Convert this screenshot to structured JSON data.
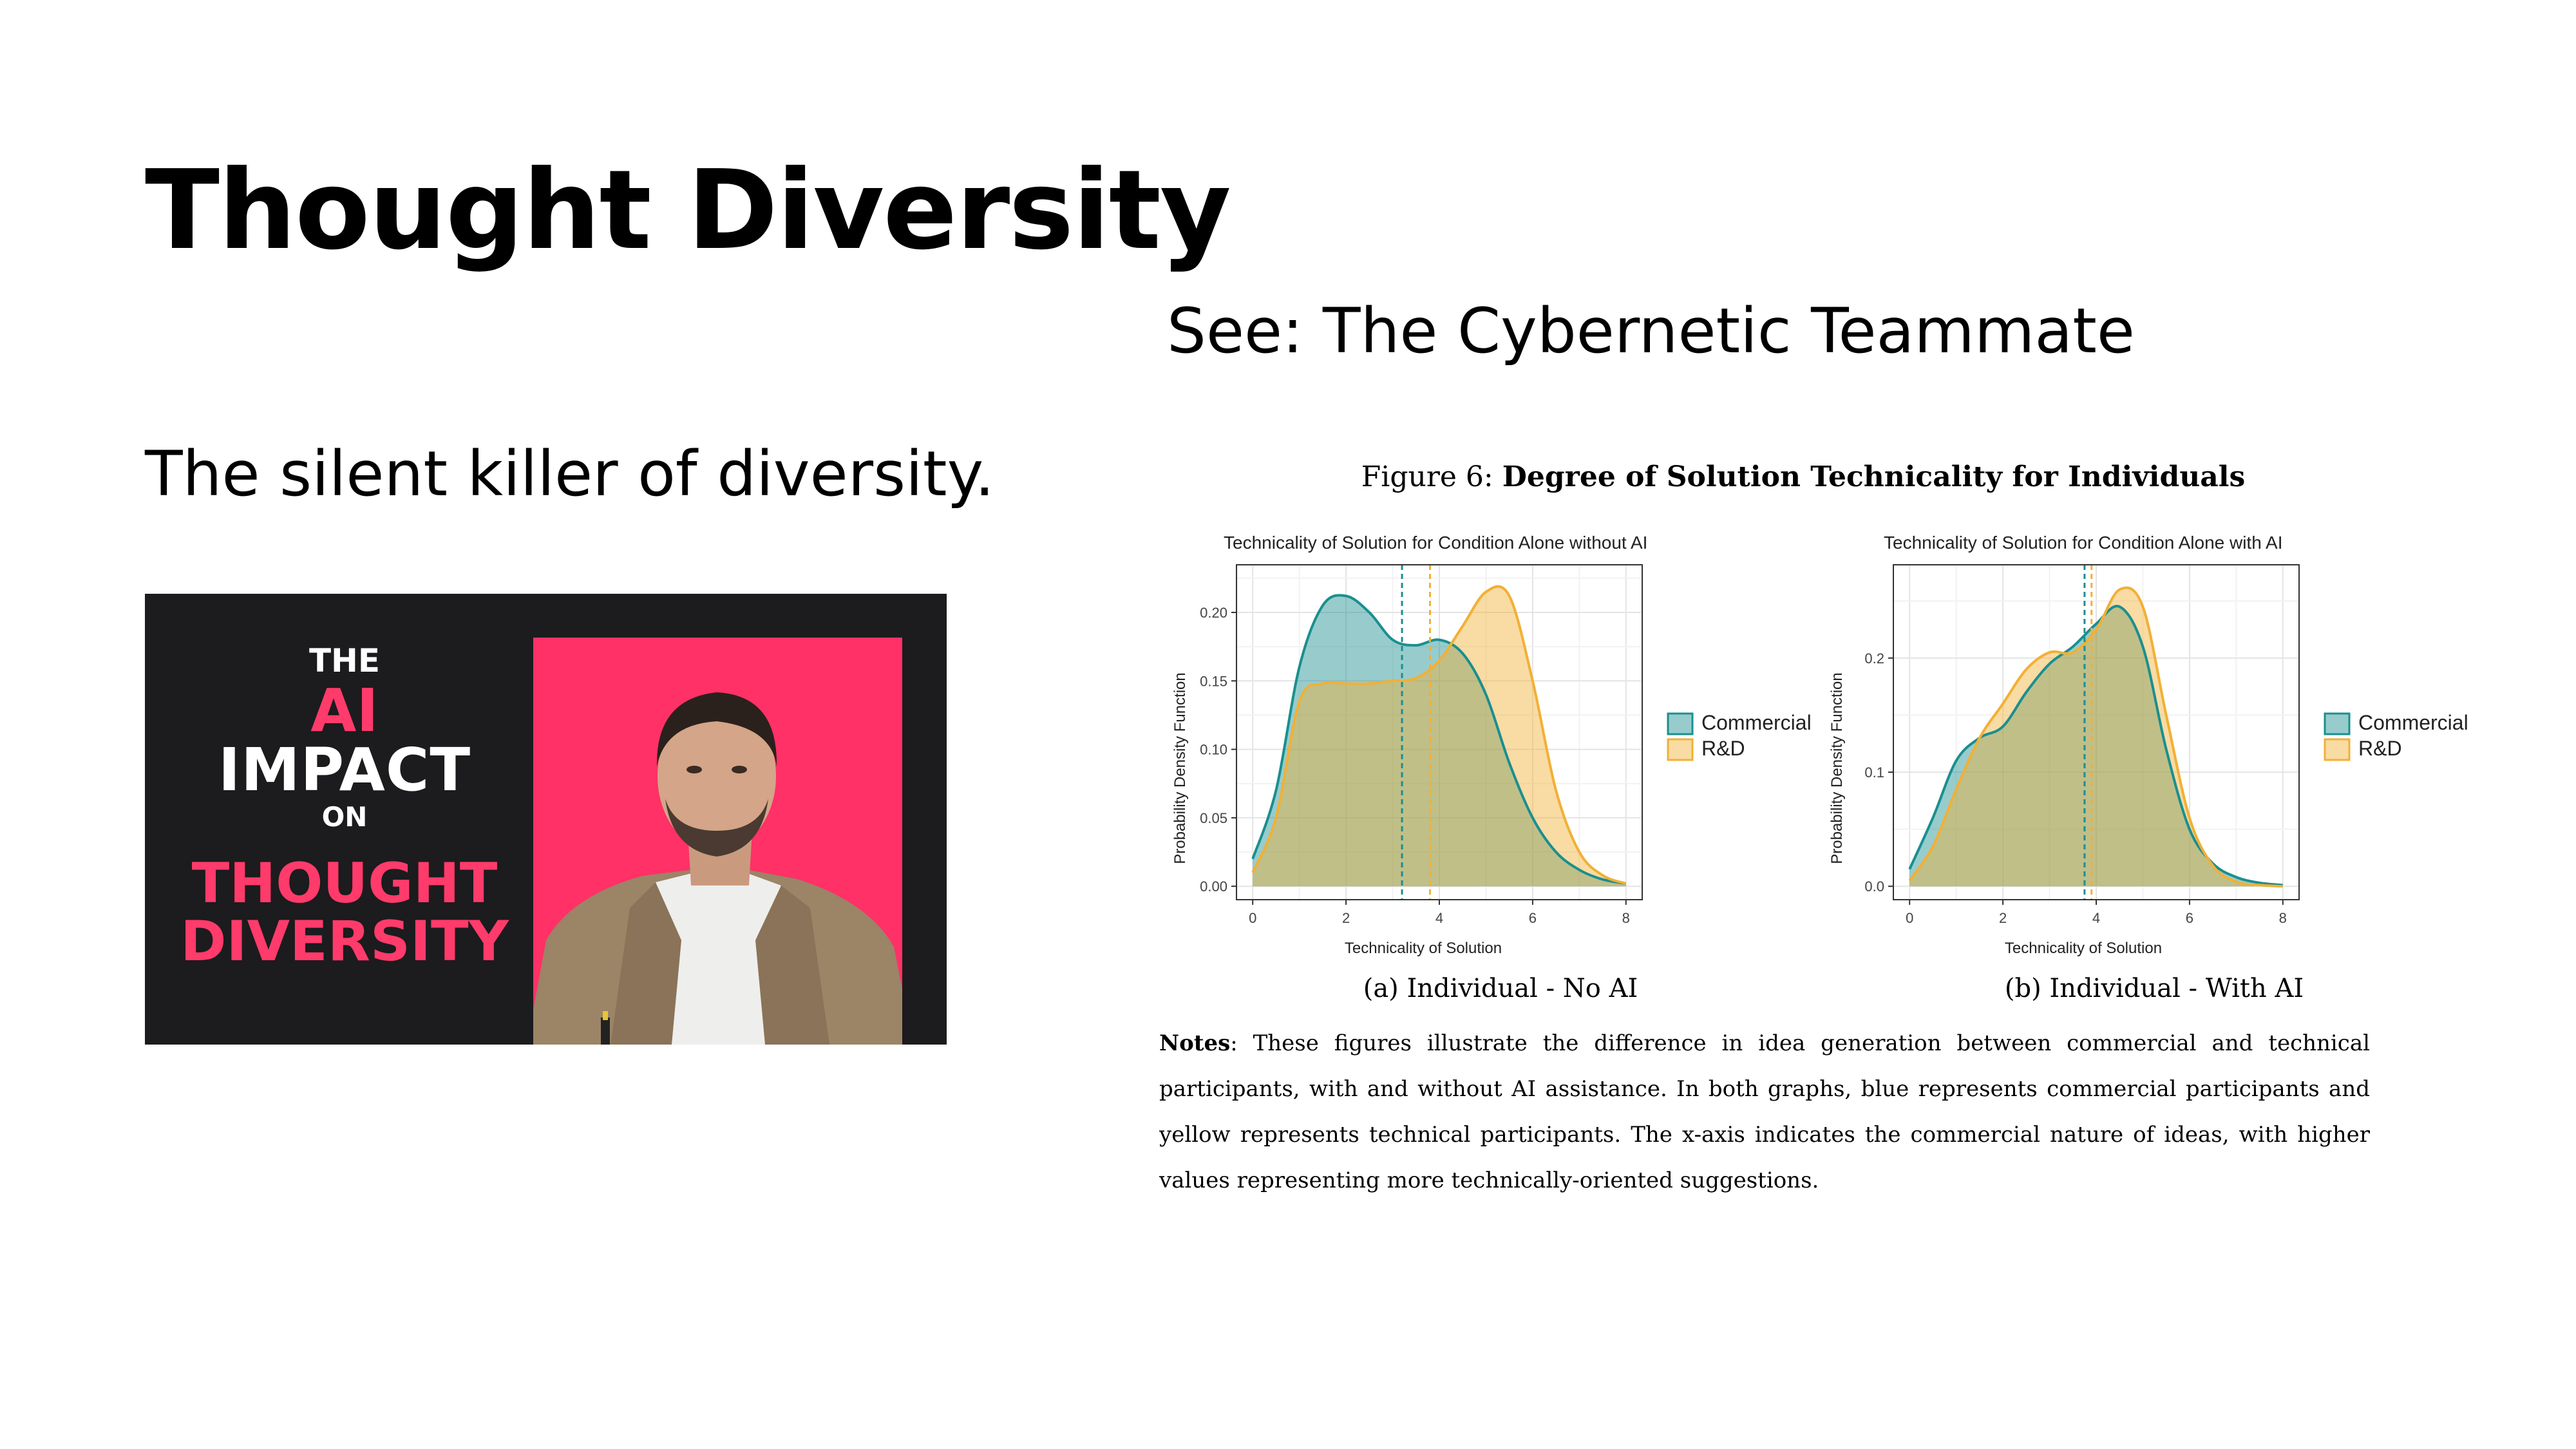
{
  "slide": {
    "title": "Thought Diversity",
    "see_text": "See: The Cybernetic Teammate",
    "subtitle": "The silent killer of diversity."
  },
  "thumbnail": {
    "line_the": "THE",
    "line_ai": "AI",
    "line_impact": "IMPACT",
    "line_on": "ON",
    "line_thought": "THOUGHT",
    "line_diversity": "DIVERSITY",
    "accent_color": "#ff3b6b",
    "background_color": "#1c1b1d"
  },
  "figure": {
    "caption_prefix": "Figure 6:",
    "caption_title": "Degree of Solution Technicality for Individuals",
    "notes_label": "Notes",
    "notes_text": ": These figures illustrate the difference in idea generation between commercial and technical participants, with and without AI assistance. In both graphs, blue represents commercial participants and yellow represents technical participants. The x-axis indicates the commercial nature of ideas, with higher values representing more technically-oriented suggestions."
  },
  "chart_data": [
    {
      "type": "area",
      "title": "Technicality of Solution for Condition Alone without AI",
      "subcaption": "(a) Individual - No AI",
      "xlabel": "Technicality of Solution",
      "ylabel": "Probability Density Function",
      "xlim": [
        0,
        8
      ],
      "ylim": [
        0,
        0.225
      ],
      "xticks": [
        0,
        2,
        4,
        6,
        8
      ],
      "yticks": [
        0.0,
        0.05,
        0.1,
        0.15,
        0.2
      ],
      "ytick_labels": [
        "0.00",
        "0.05",
        "0.10",
        "0.15",
        "0.20"
      ],
      "legend": [
        "Commercial",
        "R&D"
      ],
      "legend_position": "right",
      "grid": true,
      "series": [
        {
          "name": "Commercial",
          "color": "#1a8f8f",
          "mean": 3.2,
          "x": [
            0,
            0.5,
            1,
            1.5,
            2,
            2.5,
            3,
            3.5,
            4,
            4.5,
            5,
            5.5,
            6,
            6.5,
            7,
            7.5,
            8
          ],
          "y": [
            0.02,
            0.07,
            0.16,
            0.205,
            0.212,
            0.2,
            0.18,
            0.176,
            0.18,
            0.17,
            0.14,
            0.09,
            0.05,
            0.025,
            0.012,
            0.005,
            0.002
          ]
        },
        {
          "name": "R&D",
          "color": "#f2b035",
          "mean": 3.8,
          "x": [
            0,
            0.5,
            1,
            1.5,
            2,
            2.5,
            3,
            3.5,
            4,
            4.5,
            5,
            5.5,
            6,
            6.5,
            7,
            7.5,
            8
          ],
          "y": [
            0.01,
            0.05,
            0.135,
            0.148,
            0.148,
            0.148,
            0.15,
            0.152,
            0.165,
            0.19,
            0.215,
            0.212,
            0.15,
            0.07,
            0.025,
            0.008,
            0.002
          ]
        }
      ]
    },
    {
      "type": "area",
      "title": "Technicality of Solution for Condition Alone with AI",
      "subcaption": "(b) Individual - With AI",
      "xlabel": "Technicality of Solution",
      "ylabel": "Probability Density Function",
      "xlim": [
        0,
        8
      ],
      "ylim": [
        0,
        0.27
      ],
      "xticks": [
        0,
        2,
        4,
        6,
        8
      ],
      "yticks": [
        0.0,
        0.1,
        0.2
      ],
      "ytick_labels": [
        "0.0",
        "0.1",
        "0.2"
      ],
      "legend": [
        "Commercial",
        "R&D"
      ],
      "legend_position": "right",
      "grid": true,
      "series": [
        {
          "name": "Commercial",
          "color": "#1a8f8f",
          "mean": 3.75,
          "x": [
            0,
            0.5,
            1,
            1.5,
            2,
            2.5,
            3,
            3.5,
            4,
            4.5,
            5,
            5.5,
            6,
            6.5,
            7,
            7.5,
            8
          ],
          "y": [
            0.015,
            0.06,
            0.11,
            0.13,
            0.14,
            0.17,
            0.195,
            0.21,
            0.23,
            0.245,
            0.21,
            0.12,
            0.05,
            0.02,
            0.008,
            0.003,
            0.001
          ]
        },
        {
          "name": "R&D",
          "color": "#f2b035",
          "mean": 3.9,
          "x": [
            0,
            0.5,
            1,
            1.5,
            2,
            2.5,
            3,
            3.5,
            4,
            4.5,
            5,
            5.5,
            6,
            6.5,
            7,
            7.5,
            8
          ],
          "y": [
            0.005,
            0.035,
            0.085,
            0.13,
            0.16,
            0.19,
            0.205,
            0.205,
            0.225,
            0.26,
            0.245,
            0.15,
            0.06,
            0.018,
            0.004,
            0.001,
            0.0
          ]
        }
      ]
    }
  ]
}
